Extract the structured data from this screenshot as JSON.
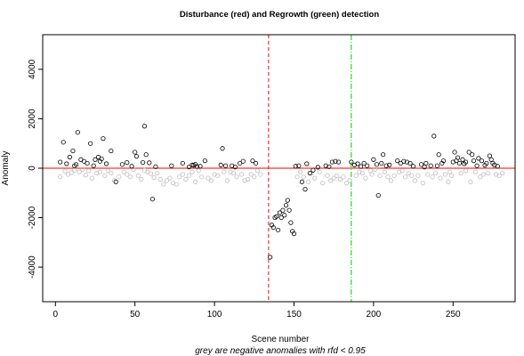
{
  "chart_data": {
    "type": "scatter",
    "title": "Disturbance (red) and Regrowth (green) detection",
    "xlabel": "Scene number",
    "ylabel": "Anomaly",
    "subtitle": "grey are negative anomalies with rfd < 0.95",
    "xlim": [
      -8,
      289
    ],
    "ylim": [
      -5400,
      5400
    ],
    "xticks": [
      0,
      50,
      100,
      150,
      200,
      250
    ],
    "yticks": [
      -4000,
      -2000,
      0,
      2000,
      4000
    ],
    "grid": false,
    "colors": {
      "zero_line": "#ff0000",
      "disturbance_line": "#ff0000",
      "regrowth_line": "#00cc00",
      "points": "#000000",
      "grey_points": "#bebebe"
    },
    "reference_lines": {
      "zero": 0,
      "disturbance_scene": 134,
      "regrowth_scene": 186
    },
    "series": [
      {
        "values": [
          [
            3,
            250
          ],
          [
            5,
            1050
          ],
          [
            7,
            180
          ],
          [
            9,
            450
          ],
          [
            11,
            700
          ],
          [
            12,
            100
          ],
          [
            13,
            150
          ],
          [
            14,
            1450
          ],
          [
            16,
            350
          ],
          [
            18,
            280
          ],
          [
            20,
            200
          ],
          [
            22,
            1000
          ],
          [
            24,
            100
          ],
          [
            25,
            350
          ],
          [
            27,
            450
          ],
          [
            28,
            280
          ],
          [
            29,
            380
          ],
          [
            30,
            1200
          ],
          [
            32,
            180
          ],
          [
            35,
            700
          ],
          [
            38,
            -550
          ],
          [
            42,
            150
          ],
          [
            45,
            230
          ],
          [
            48,
            80
          ],
          [
            50,
            650
          ],
          [
            51,
            480
          ],
          [
            55,
            230
          ],
          [
            56,
            1700
          ],
          [
            57,
            550
          ],
          [
            59,
            220
          ],
          [
            61,
            -1250
          ],
          [
            63,
            60
          ],
          [
            73,
            100
          ],
          [
            80,
            200
          ],
          [
            84,
            50
          ],
          [
            86,
            130
          ],
          [
            87,
            120
          ],
          [
            88,
            160
          ],
          [
            89,
            70
          ],
          [
            91,
            80
          ],
          [
            94,
            300
          ],
          [
            104,
            130
          ],
          [
            105,
            800
          ],
          [
            107,
            100
          ],
          [
            111,
            100
          ],
          [
            113,
            50
          ],
          [
            116,
            200
          ],
          [
            118,
            280
          ],
          [
            124,
            300
          ],
          [
            126,
            200
          ],
          [
            135,
            -3600
          ],
          [
            136,
            -2300
          ],
          [
            137,
            -2400
          ],
          [
            138,
            -2000
          ],
          [
            139,
            -1950
          ],
          [
            140,
            -2500
          ],
          [
            141,
            -1800
          ],
          [
            142,
            -2000
          ],
          [
            143,
            -1700
          ],
          [
            144,
            -1900
          ],
          [
            145,
            -1500
          ],
          [
            146,
            -1300
          ],
          [
            147,
            -1700
          ],
          [
            148,
            -2200
          ],
          [
            149,
            -2550
          ],
          [
            150,
            -2650
          ],
          [
            151,
            80
          ],
          [
            153,
            100
          ],
          [
            155,
            -550
          ],
          [
            157,
            -850
          ],
          [
            158,
            180
          ],
          [
            160,
            -200
          ],
          [
            162,
            -80
          ],
          [
            165,
            40
          ],
          [
            170,
            100
          ],
          [
            172,
            60
          ],
          [
            174,
            250
          ],
          [
            176,
            280
          ],
          [
            178,
            250
          ],
          [
            186,
            250
          ],
          [
            188,
            130
          ],
          [
            190,
            180
          ],
          [
            192,
            70
          ],
          [
            194,
            200
          ],
          [
            196,
            100
          ],
          [
            200,
            350
          ],
          [
            202,
            150
          ],
          [
            203,
            -1100
          ],
          [
            205,
            200
          ],
          [
            206,
            550
          ],
          [
            208,
            100
          ],
          [
            210,
            130
          ],
          [
            215,
            300
          ],
          [
            217,
            200
          ],
          [
            219,
            280
          ],
          [
            221,
            250
          ],
          [
            223,
            200
          ],
          [
            225,
            80
          ],
          [
            230,
            150
          ],
          [
            232,
            50
          ],
          [
            233,
            200
          ],
          [
            236,
            100
          ],
          [
            238,
            1300
          ],
          [
            240,
            100
          ],
          [
            241,
            550
          ],
          [
            243,
            200
          ],
          [
            244,
            300
          ],
          [
            250,
            250
          ],
          [
            251,
            650
          ],
          [
            252,
            300
          ],
          [
            253,
            430
          ],
          [
            254,
            200
          ],
          [
            256,
            350
          ],
          [
            257,
            180
          ],
          [
            258,
            250
          ],
          [
            260,
            650
          ],
          [
            262,
            550
          ],
          [
            263,
            300
          ],
          [
            265,
            100
          ],
          [
            266,
            400
          ],
          [
            268,
            300
          ],
          [
            270,
            120
          ],
          [
            271,
            200
          ],
          [
            273,
            500
          ],
          [
            274,
            350
          ],
          [
            275,
            200
          ],
          [
            276,
            130
          ],
          [
            278,
            80
          ]
        ]
      },
      {
        "values": [
          [
            3,
            -350
          ],
          [
            6,
            -120
          ],
          [
            8,
            -250
          ],
          [
            10,
            -180
          ],
          [
            12,
            -80
          ],
          [
            15,
            -150
          ],
          [
            17,
            -50
          ],
          [
            19,
            -280
          ],
          [
            21,
            -100
          ],
          [
            23,
            -400
          ],
          [
            26,
            -200
          ],
          [
            28,
            -150
          ],
          [
            31,
            -300
          ],
          [
            33,
            -100
          ],
          [
            35,
            -200
          ],
          [
            37,
            -500
          ],
          [
            40,
            -350
          ],
          [
            43,
            -150
          ],
          [
            45,
            -250
          ],
          [
            47,
            -350
          ],
          [
            49,
            -50
          ],
          [
            52,
            -300
          ],
          [
            54,
            -450
          ],
          [
            56,
            -80
          ],
          [
            58,
            -150
          ],
          [
            60,
            -220
          ],
          [
            62,
            -380
          ],
          [
            64,
            -200
          ],
          [
            66,
            -450
          ],
          [
            68,
            -650
          ],
          [
            70,
            -500
          ],
          [
            72,
            -400
          ],
          [
            74,
            -600
          ],
          [
            76,
            -650
          ],
          [
            78,
            -350
          ],
          [
            80,
            -250
          ],
          [
            82,
            -450
          ],
          [
            84,
            -300
          ],
          [
            86,
            -150
          ],
          [
            88,
            -550
          ],
          [
            90,
            -100
          ],
          [
            92,
            -350
          ],
          [
            96,
            -400
          ],
          [
            98,
            -500
          ],
          [
            100,
            -250
          ],
          [
            102,
            -300
          ],
          [
            106,
            -150
          ],
          [
            108,
            -500
          ],
          [
            110,
            -150
          ],
          [
            112,
            -200
          ],
          [
            114,
            -350
          ],
          [
            117,
            -250
          ],
          [
            119,
            -500
          ],
          [
            121,
            -450
          ],
          [
            123,
            -250
          ],
          [
            125,
            -350
          ],
          [
            127,
            -100
          ],
          [
            129,
            -250
          ],
          [
            152,
            -350
          ],
          [
            154,
            -150
          ],
          [
            156,
            -350
          ],
          [
            159,
            -550
          ],
          [
            161,
            -200
          ],
          [
            163,
            -400
          ],
          [
            166,
            -150
          ],
          [
            168,
            -600
          ],
          [
            171,
            -300
          ],
          [
            173,
            -500
          ],
          [
            175,
            -400
          ],
          [
            177,
            -300
          ],
          [
            179,
            -450
          ],
          [
            181,
            -350
          ],
          [
            183,
            -600
          ],
          [
            185,
            -500
          ],
          [
            189,
            -300
          ],
          [
            191,
            -150
          ],
          [
            193,
            -200
          ],
          [
            195,
            -400
          ],
          [
            198,
            -100
          ],
          [
            199,
            -250
          ],
          [
            201,
            -50
          ],
          [
            204,
            -300
          ],
          [
            207,
            -150
          ],
          [
            209,
            -350
          ],
          [
            211,
            -500
          ],
          [
            213,
            -300
          ],
          [
            216,
            -150
          ],
          [
            218,
            -100
          ],
          [
            220,
            -350
          ],
          [
            222,
            -200
          ],
          [
            224,
            -300
          ],
          [
            226,
            -500
          ],
          [
            228,
            -300
          ],
          [
            231,
            -600
          ],
          [
            234,
            -250
          ],
          [
            237,
            -350
          ],
          [
            239,
            -200
          ],
          [
            242,
            -400
          ],
          [
            245,
            -250
          ],
          [
            247,
            -550
          ],
          [
            248,
            -150
          ],
          [
            249,
            -300
          ],
          [
            255,
            -200
          ],
          [
            258,
            -100
          ],
          [
            261,
            -550
          ],
          [
            264,
            -150
          ],
          [
            267,
            -350
          ],
          [
            269,
            -250
          ],
          [
            272,
            -200
          ],
          [
            277,
            -250
          ],
          [
            279,
            -300
          ],
          [
            281,
            -200
          ]
        ]
      }
    ]
  }
}
